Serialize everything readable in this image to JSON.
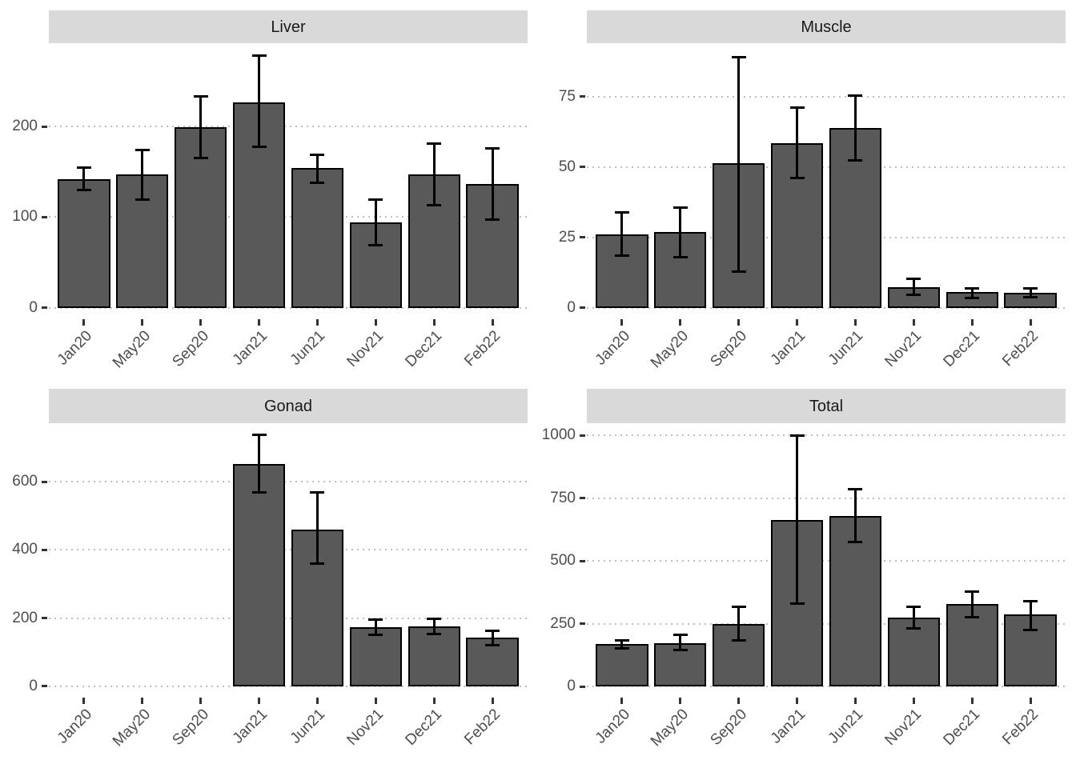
{
  "style": {
    "background": "#FFFFFF",
    "bar_fill": "#595959",
    "bar_stroke": "#000000",
    "errorbar_color": "#000000",
    "strip_bg": "#D9D9D9",
    "strip_text_color": "#1A1A1A",
    "axis_text_color": "#4D4D4D",
    "tick_color": "#333333",
    "grid_color": "#BEBEBE"
  },
  "chart_data": [
    {
      "type": "bar",
      "facet": "Liver",
      "legend": "none",
      "grid": "dotted major horizontal",
      "categories": [
        "Jan20",
        "May20",
        "Sep20",
        "Jan21",
        "Jun21",
        "Nov21",
        "Dec21",
        "Feb22"
      ],
      "values": [
        142,
        147,
        199,
        227,
        154,
        94,
        147,
        137
      ],
      "error_low": [
        130,
        119,
        165,
        178,
        138,
        69,
        113,
        97
      ],
      "error_high": [
        155,
        174,
        233,
        278,
        169,
        119,
        181,
        176
      ],
      "yticks": [
        0,
        100,
        200
      ],
      "ylim": [
        -10,
        292
      ],
      "xlabel": "",
      "ylabel": ""
    },
    {
      "type": "bar",
      "facet": "Muscle",
      "legend": "none",
      "grid": "dotted major horizontal",
      "categories": [
        "Jan20",
        "May20",
        "Sep20",
        "Jan21",
        "Jun21",
        "Nov21",
        "Dec21",
        "Feb22"
      ],
      "values": [
        26,
        27,
        51.5,
        58.5,
        64,
        7.4,
        5.7,
        5.4
      ],
      "error_low": [
        18.5,
        18,
        13,
        46,
        52.5,
        4.5,
        3.4,
        3.7
      ],
      "error_high": [
        34,
        35.5,
        89,
        71,
        75.5,
        10.2,
        6.8,
        6.8
      ],
      "yticks": [
        0,
        25,
        50,
        75
      ],
      "ylim": [
        -3.2,
        94
      ],
      "xlabel": "",
      "ylabel": ""
    },
    {
      "type": "bar",
      "facet": "Gonad",
      "legend": "none",
      "grid": "dotted major horizontal",
      "categories": [
        "Jan20",
        "May20",
        "Sep20",
        "Jan21",
        "Jun21",
        "Nov21",
        "Dec21",
        "Feb22"
      ],
      "values": [
        null,
        null,
        null,
        653,
        460,
        174,
        177,
        142
      ],
      "error_low": [
        null,
        null,
        null,
        568,
        359,
        151,
        153,
        121
      ],
      "error_high": [
        null,
        null,
        null,
        739,
        568,
        195,
        198,
        163
      ],
      "yticks": [
        0,
        200,
        400,
        600
      ],
      "ylim": [
        -26,
        772
      ],
      "xlabel": "",
      "ylabel": ""
    },
    {
      "type": "bar",
      "facet": "Total",
      "legend": "none",
      "grid": "dotted major horizontal",
      "categories": [
        "Jan20",
        "May20",
        "Sep20",
        "Jan21",
        "Jun21",
        "Nov21",
        "Dec21",
        "Feb22"
      ],
      "values": [
        168,
        173,
        250,
        663,
        679,
        274,
        328,
        287
      ],
      "error_low": [
        152,
        144,
        183,
        330,
        575,
        232,
        274,
        226
      ],
      "error_high": [
        184,
        205,
        318,
        1000,
        784,
        318,
        378,
        338
      ],
      "yticks": [
        0,
        250,
        500,
        750,
        1000
      ],
      "ylim": [
        -35,
        1048
      ],
      "xlabel": "",
      "ylabel": ""
    }
  ]
}
